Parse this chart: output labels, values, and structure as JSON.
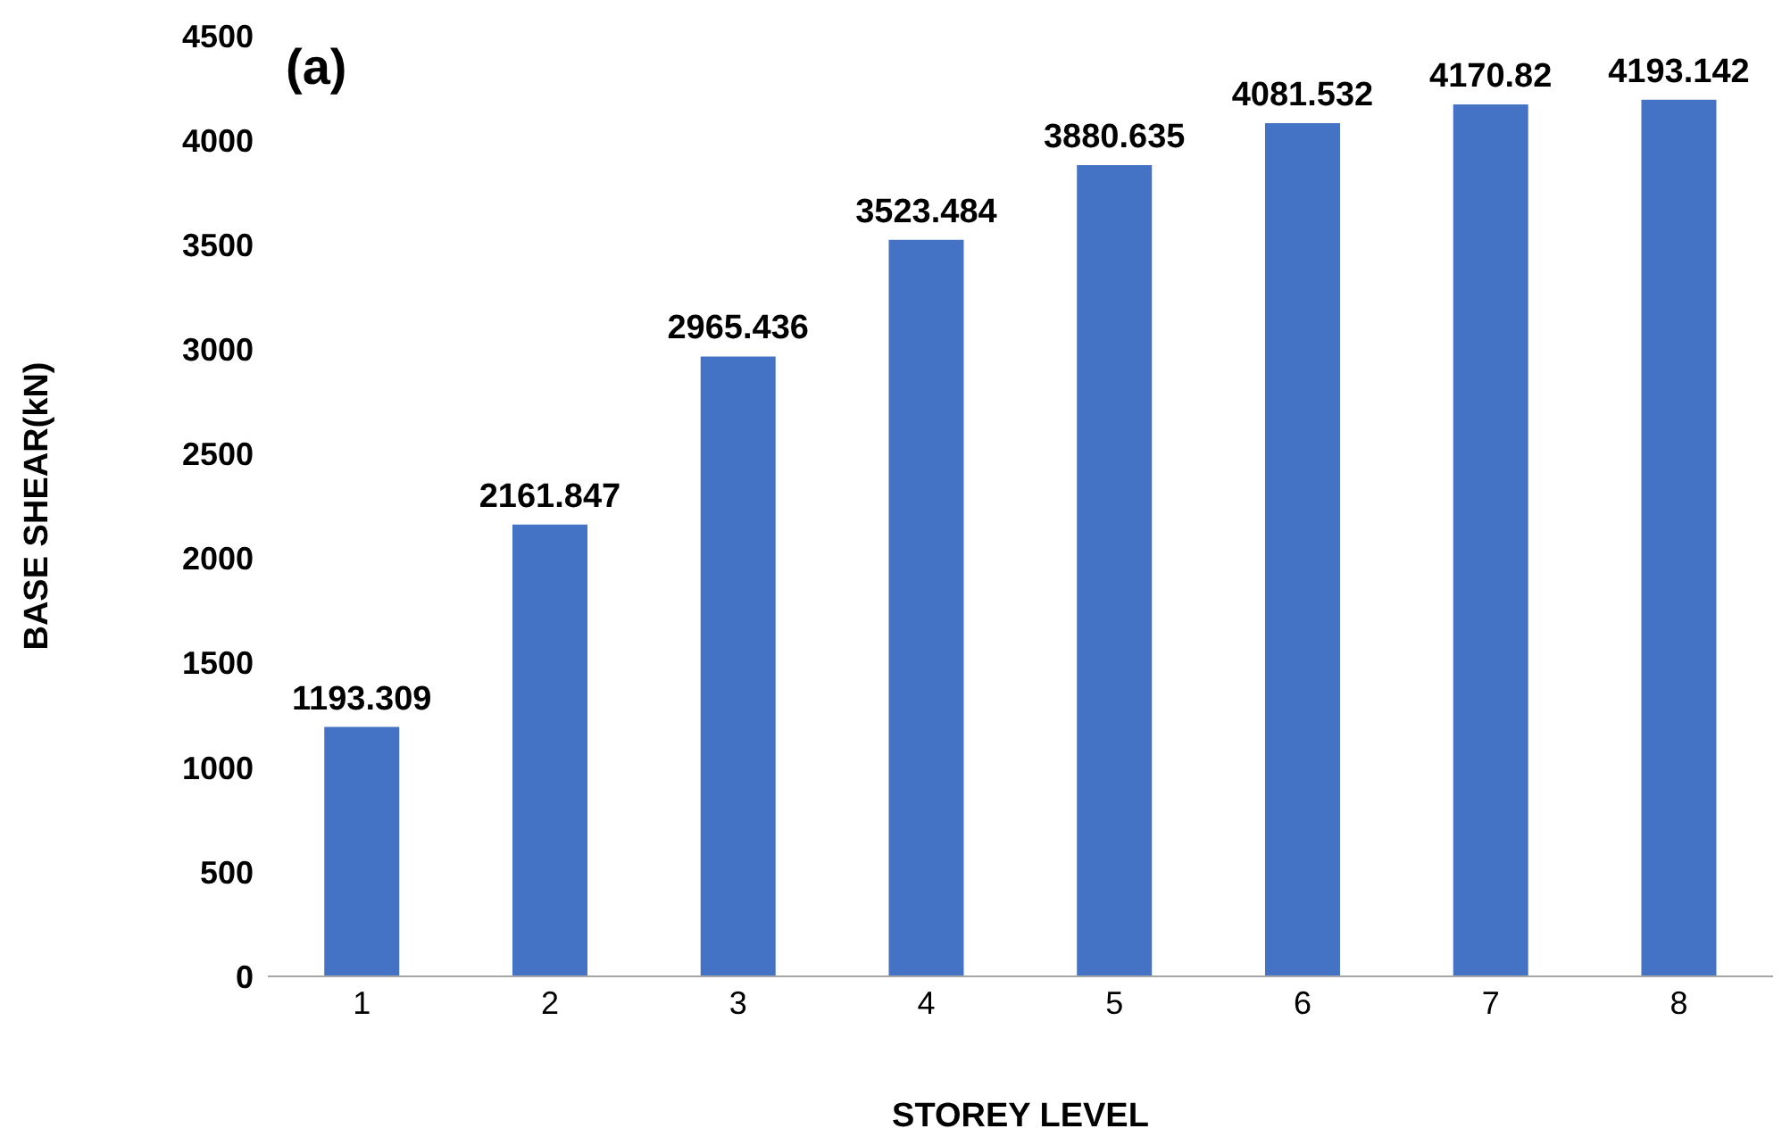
{
  "chart_data": {
    "type": "bar",
    "xlabel": "STOREY LEVEL",
    "ylabel": "BASE SHEAR(kN)",
    "annotations": [
      "(a)"
    ],
    "categories": [
      "1",
      "2",
      "3",
      "4",
      "5",
      "6",
      "7",
      "8"
    ],
    "values": [
      1193.309,
      2161.847,
      2965.436,
      3523.484,
      3880.635,
      4081.532,
      4170.82,
      4193.142
    ],
    "color": "#4472c4",
    "ylim": [
      0,
      4500
    ],
    "yticks": [
      0,
      500,
      1000,
      1500,
      2000,
      2500,
      3000,
      3500,
      4000,
      4500
    ],
    "grid": false,
    "data_labels": true
  }
}
